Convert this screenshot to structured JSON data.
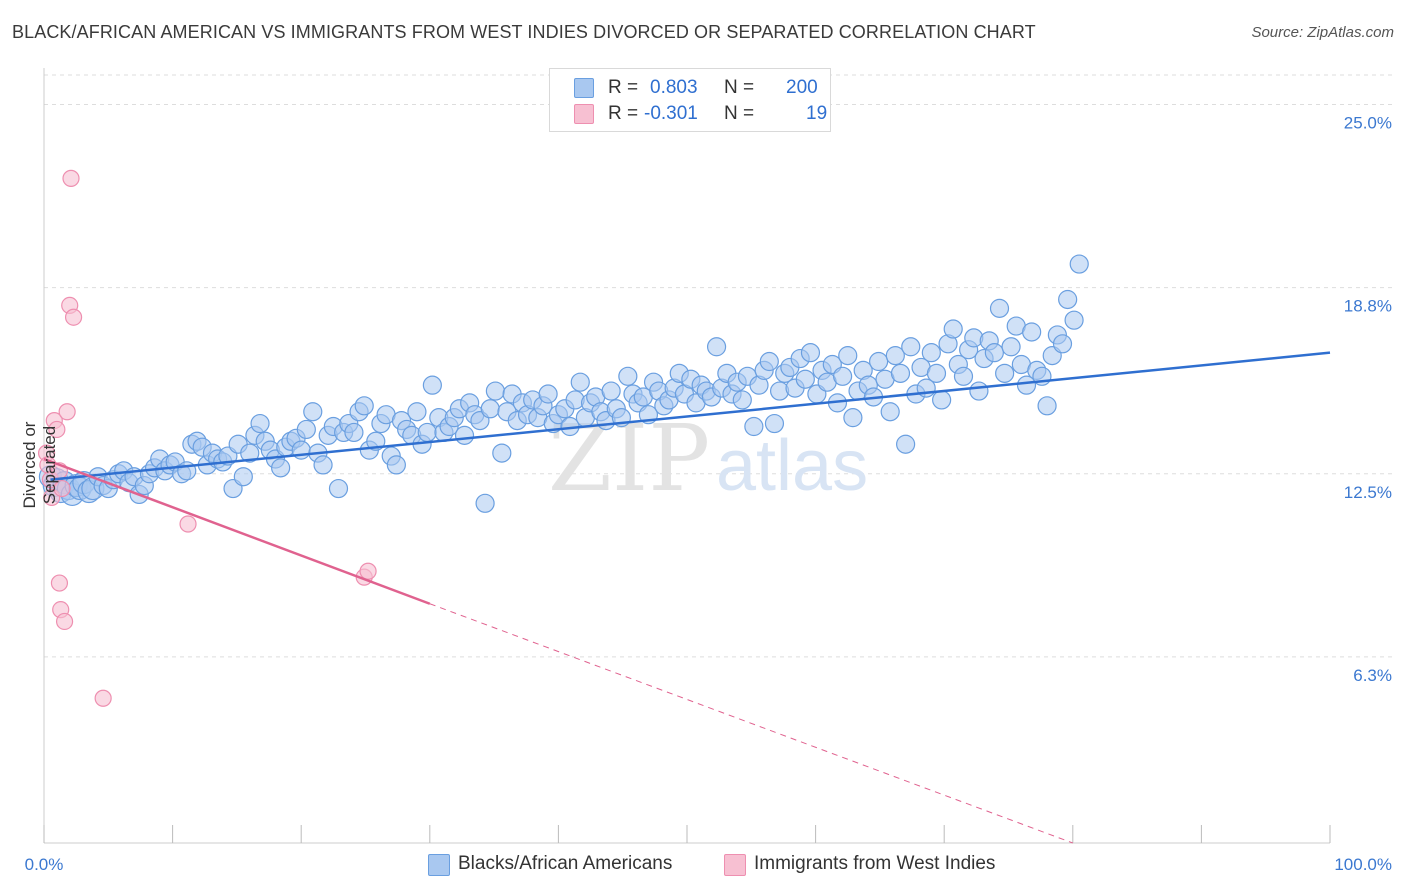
{
  "title": "BLACK/AFRICAN AMERICAN VS IMMIGRANTS FROM WEST INDIES DIVORCED OR SEPARATED CORRELATION CHART",
  "source": "Source: ZipAtlas.com",
  "watermark": {
    "zip": "ZIP",
    "atlas": "atlas"
  },
  "colors": {
    "blue_fill": "#a9c8f0",
    "blue_stroke": "#6a9fe0",
    "blue_line": "#2f6fd0",
    "pink_fill": "#f7c0d2",
    "pink_stroke": "#ee8fb0",
    "pink_line": "#e0628f",
    "tick_label": "#3b78d0",
    "grid": "#dddddd"
  },
  "legend": {
    "r_label": "R =",
    "n_label": "N =",
    "series": [
      {
        "r": "0.803",
        "n": "200"
      },
      {
        "r": "-0.301",
        "n": "19"
      }
    ]
  },
  "chart_data": {
    "type": "scatter",
    "title": "BLACK/AFRICAN AMERICAN VS IMMIGRANTS FROM WEST INDIES DIVORCED OR SEPARATED CORRELATION CHART",
    "xlabel": "",
    "ylabel": "Divorced or Separated",
    "xlim": [
      0,
      100
    ],
    "ylim": [
      0,
      26.0
    ],
    "x_tick_labels": [
      "0.0%",
      "100.0%"
    ],
    "y_ticks": [
      6.3,
      12.5,
      18.8,
      25.0
    ],
    "y_tick_labels": [
      "6.3%",
      "12.5%",
      "18.8%",
      "25.0%"
    ],
    "grid": true,
    "legend_position": "top-center",
    "series": [
      {
        "name": "Blacks/African Americans",
        "color": "#a9c8f0",
        "trend": {
          "x": [
            0.5,
            100
          ],
          "y": [
            12.3,
            16.6
          ],
          "style": "solid"
        },
        "points": [
          [
            0.5,
            12.4
          ],
          [
            0.8,
            12.1
          ],
          [
            1.0,
            12.3
          ],
          [
            1.3,
            11.9
          ],
          [
            1.6,
            12.2
          ],
          [
            1.9,
            12.0
          ],
          [
            2.2,
            11.8
          ],
          [
            2.5,
            12.1
          ],
          [
            2.8,
            12.0
          ],
          [
            3.1,
            12.2
          ],
          [
            3.5,
            11.9
          ],
          [
            3.8,
            12.0
          ],
          [
            4.2,
            12.4
          ],
          [
            4.6,
            12.1
          ],
          [
            5.0,
            12.0
          ],
          [
            5.4,
            12.3
          ],
          [
            5.8,
            12.5
          ],
          [
            6.2,
            12.6
          ],
          [
            6.6,
            12.2
          ],
          [
            7.0,
            12.4
          ],
          [
            7.4,
            11.8
          ],
          [
            7.8,
            12.1
          ],
          [
            8.2,
            12.5
          ],
          [
            8.6,
            12.7
          ],
          [
            9.0,
            13.0
          ],
          [
            9.4,
            12.6
          ],
          [
            9.8,
            12.8
          ],
          [
            10.2,
            12.9
          ],
          [
            10.7,
            12.5
          ],
          [
            11.1,
            12.6
          ],
          [
            11.5,
            13.5
          ],
          [
            11.9,
            13.6
          ],
          [
            12.3,
            13.4
          ],
          [
            12.7,
            12.8
          ],
          [
            13.1,
            13.2
          ],
          [
            13.5,
            13.0
          ],
          [
            13.9,
            12.9
          ],
          [
            14.3,
            13.1
          ],
          [
            14.7,
            12.0
          ],
          [
            15.1,
            13.5
          ],
          [
            15.5,
            12.4
          ],
          [
            16.0,
            13.2
          ],
          [
            16.4,
            13.8
          ],
          [
            16.8,
            14.2
          ],
          [
            17.2,
            13.6
          ],
          [
            17.6,
            13.3
          ],
          [
            18.0,
            13.0
          ],
          [
            18.4,
            12.7
          ],
          [
            18.8,
            13.4
          ],
          [
            19.2,
            13.6
          ],
          [
            19.6,
            13.7
          ],
          [
            20.0,
            13.3
          ],
          [
            20.4,
            14.0
          ],
          [
            20.9,
            14.6
          ],
          [
            21.3,
            13.2
          ],
          [
            21.7,
            12.8
          ],
          [
            22.1,
            13.8
          ],
          [
            22.5,
            14.1
          ],
          [
            22.9,
            12.0
          ],
          [
            23.3,
            13.9
          ],
          [
            23.7,
            14.2
          ],
          [
            24.1,
            13.9
          ],
          [
            24.5,
            14.6
          ],
          [
            24.9,
            14.8
          ],
          [
            25.3,
            13.3
          ],
          [
            25.8,
            13.6
          ],
          [
            26.2,
            14.2
          ],
          [
            26.6,
            14.5
          ],
          [
            27.0,
            13.1
          ],
          [
            27.4,
            12.8
          ],
          [
            27.8,
            14.3
          ],
          [
            28.2,
            14.0
          ],
          [
            28.6,
            13.8
          ],
          [
            29.0,
            14.6
          ],
          [
            29.4,
            13.5
          ],
          [
            29.8,
            13.9
          ],
          [
            30.2,
            15.5
          ],
          [
            30.7,
            14.4
          ],
          [
            31.1,
            13.9
          ],
          [
            31.5,
            14.1
          ],
          [
            31.9,
            14.4
          ],
          [
            32.3,
            14.7
          ],
          [
            32.7,
            13.8
          ],
          [
            33.1,
            14.9
          ],
          [
            33.5,
            14.5
          ],
          [
            33.9,
            14.3
          ],
          [
            34.3,
            11.5
          ],
          [
            34.7,
            14.7
          ],
          [
            35.1,
            15.3
          ],
          [
            35.6,
            13.2
          ],
          [
            36.0,
            14.6
          ],
          [
            36.4,
            15.2
          ],
          [
            36.8,
            14.3
          ],
          [
            37.2,
            14.9
          ],
          [
            37.6,
            14.5
          ],
          [
            38.0,
            15.0
          ],
          [
            38.4,
            14.4
          ],
          [
            38.8,
            14.8
          ],
          [
            39.2,
            15.2
          ],
          [
            39.6,
            14.2
          ],
          [
            40.0,
            14.5
          ],
          [
            40.5,
            14.7
          ],
          [
            40.9,
            14.1
          ],
          [
            41.3,
            15.0
          ],
          [
            41.7,
            15.6
          ],
          [
            42.1,
            14.4
          ],
          [
            42.5,
            14.9
          ],
          [
            42.9,
            15.1
          ],
          [
            43.3,
            14.6
          ],
          [
            43.7,
            14.3
          ],
          [
            44.1,
            15.3
          ],
          [
            44.5,
            14.7
          ],
          [
            44.9,
            14.4
          ],
          [
            45.4,
            15.8
          ],
          [
            45.8,
            15.2
          ],
          [
            46.2,
            14.9
          ],
          [
            46.6,
            15.1
          ],
          [
            47.0,
            14.5
          ],
          [
            47.4,
            15.6
          ],
          [
            47.8,
            15.3
          ],
          [
            48.2,
            14.8
          ],
          [
            48.6,
            15.0
          ],
          [
            49.0,
            15.4
          ],
          [
            49.4,
            15.9
          ],
          [
            49.8,
            15.2
          ],
          [
            50.3,
            15.7
          ],
          [
            50.7,
            14.9
          ],
          [
            51.1,
            15.5
          ],
          [
            51.5,
            15.3
          ],
          [
            51.9,
            15.1
          ],
          [
            52.3,
            16.8
          ],
          [
            52.7,
            15.4
          ],
          [
            53.1,
            15.9
          ],
          [
            53.5,
            15.2
          ],
          [
            53.9,
            15.6
          ],
          [
            54.3,
            15.0
          ],
          [
            54.7,
            15.8
          ],
          [
            55.2,
            14.1
          ],
          [
            55.6,
            15.5
          ],
          [
            56.0,
            16.0
          ],
          [
            56.4,
            16.3
          ],
          [
            56.8,
            14.2
          ],
          [
            57.2,
            15.3
          ],
          [
            57.6,
            15.9
          ],
          [
            58.0,
            16.1
          ],
          [
            58.4,
            15.4
          ],
          [
            58.8,
            16.4
          ],
          [
            59.2,
            15.7
          ],
          [
            59.6,
            16.6
          ],
          [
            60.1,
            15.2
          ],
          [
            60.5,
            16.0
          ],
          [
            60.9,
            15.6
          ],
          [
            61.3,
            16.2
          ],
          [
            61.7,
            14.9
          ],
          [
            62.1,
            15.8
          ],
          [
            62.5,
            16.5
          ],
          [
            62.9,
            14.4
          ],
          [
            63.3,
            15.3
          ],
          [
            63.7,
            16.0
          ],
          [
            64.1,
            15.5
          ],
          [
            64.5,
            15.1
          ],
          [
            64.9,
            16.3
          ],
          [
            65.4,
            15.7
          ],
          [
            65.8,
            14.6
          ],
          [
            66.2,
            16.5
          ],
          [
            66.6,
            15.9
          ],
          [
            67.0,
            13.5
          ],
          [
            67.4,
            16.8
          ],
          [
            67.8,
            15.2
          ],
          [
            68.2,
            16.1
          ],
          [
            68.6,
            15.4
          ],
          [
            69.0,
            16.6
          ],
          [
            69.4,
            15.9
          ],
          [
            69.8,
            15.0
          ],
          [
            70.3,
            16.9
          ],
          [
            70.7,
            17.4
          ],
          [
            71.1,
            16.2
          ],
          [
            71.5,
            15.8
          ],
          [
            71.9,
            16.7
          ],
          [
            72.3,
            17.1
          ],
          [
            72.7,
            15.3
          ],
          [
            73.1,
            16.4
          ],
          [
            73.5,
            17.0
          ],
          [
            73.9,
            16.6
          ],
          [
            74.3,
            18.1
          ],
          [
            74.7,
            15.9
          ],
          [
            75.2,
            16.8
          ],
          [
            75.6,
            17.5
          ],
          [
            76.0,
            16.2
          ],
          [
            76.4,
            15.5
          ],
          [
            76.8,
            17.3
          ],
          [
            77.2,
            16.0
          ],
          [
            77.6,
            15.8
          ],
          [
            78.0,
            14.8
          ],
          [
            78.4,
            16.5
          ],
          [
            78.8,
            17.2
          ],
          [
            79.2,
            16.9
          ],
          [
            79.6,
            18.4
          ],
          [
            80.1,
            17.7
          ],
          [
            80.5,
            19.6
          ]
        ]
      },
      {
        "name": "Immigrants from West Indies",
        "color": "#f7c0d2",
        "trend": {
          "x": [
            0,
            30
          ],
          "y": [
            13.0,
            8.1
          ],
          "style": "solid",
          "extended_to": [
            80,
            0
          ],
          "extended_style": "dashed"
        },
        "points": [
          [
            0.2,
            13.2
          ],
          [
            0.3,
            12.8
          ],
          [
            0.5,
            12.3
          ],
          [
            0.6,
            11.7
          ],
          [
            0.8,
            14.3
          ],
          [
            1.0,
            14.0
          ],
          [
            1.2,
            12.6
          ],
          [
            1.2,
            8.8
          ],
          [
            1.3,
            7.9
          ],
          [
            1.4,
            12.0
          ],
          [
            1.6,
            7.5
          ],
          [
            1.8,
            14.6
          ],
          [
            2.0,
            18.2
          ],
          [
            2.1,
            22.5
          ],
          [
            2.3,
            17.8
          ],
          [
            4.6,
            4.9
          ],
          [
            11.2,
            10.8
          ],
          [
            24.9,
            9.0
          ],
          [
            25.2,
            9.2
          ]
        ]
      }
    ]
  },
  "bottom_legend": [
    "Blacks/African Americans",
    "Immigrants from West Indies"
  ]
}
